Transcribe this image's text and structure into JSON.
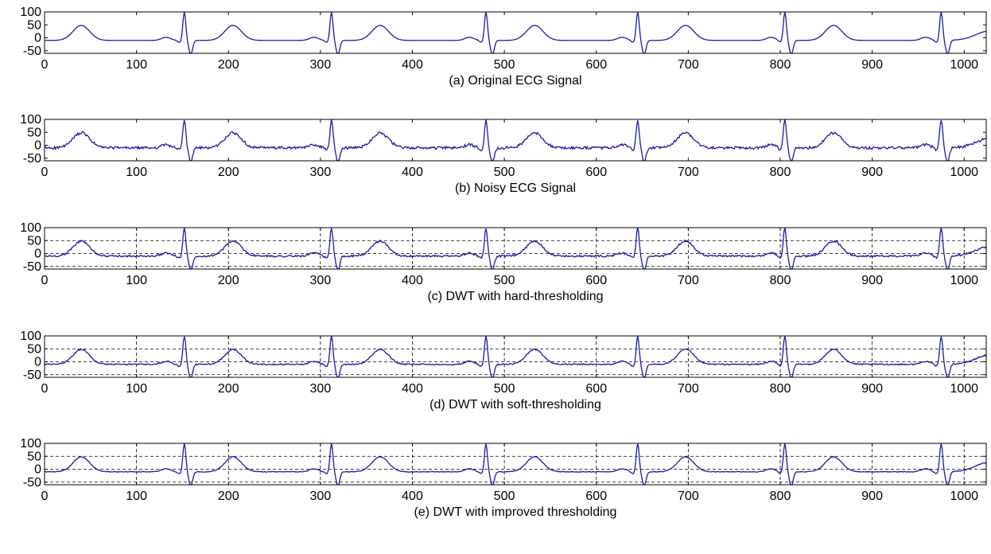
{
  "header": {
    "text": "",
    "color": "#cc0000"
  },
  "chart_data": [
    {
      "type": "line",
      "title": "(a) Original ECG Signal",
      "xlim": [
        0,
        1024
      ],
      "ylim": [
        -60,
        100
      ],
      "xticks": [
        0,
        100,
        200,
        300,
        400,
        500,
        600,
        700,
        800,
        900,
        1000
      ],
      "yticks": [
        100,
        50,
        0,
        -50
      ],
      "grid": false,
      "noise": 0,
      "line_color": "#1a1aa6"
    },
    {
      "type": "line",
      "title": "(b) Noisy ECG Signal",
      "xlim": [
        0,
        1024
      ],
      "ylim": [
        -60,
        100
      ],
      "xticks": [
        0,
        100,
        200,
        300,
        400,
        500,
        600,
        700,
        800,
        900,
        1000
      ],
      "yticks": [
        100,
        50,
        0,
        -50
      ],
      "grid": false,
      "noise": 5,
      "line_color": "#1a1aa6"
    },
    {
      "type": "line",
      "title": "(c) DWT with hard-thresholding",
      "xlim": [
        0,
        1024
      ],
      "ylim": [
        -60,
        100
      ],
      "xticks": [
        0,
        100,
        200,
        300,
        400,
        500,
        600,
        700,
        800,
        900,
        1000
      ],
      "yticks": [
        100,
        50,
        0,
        -50
      ],
      "grid": true,
      "noise": 3.5,
      "line_color": "#1a1aa6"
    },
    {
      "type": "line",
      "title": "(d) DWT with soft-thresholding",
      "xlim": [
        0,
        1024
      ],
      "ylim": [
        -60,
        100
      ],
      "xticks": [
        0,
        100,
        200,
        300,
        400,
        500,
        600,
        700,
        800,
        900,
        1000
      ],
      "yticks": [
        100,
        50,
        0,
        -50
      ],
      "grid": true,
      "noise": 2.5,
      "line_color": "#1a1aa6"
    },
    {
      "type": "line",
      "title": "(e) DWT with improved thresholding",
      "xlim": [
        0,
        1024
      ],
      "ylim": [
        -60,
        100
      ],
      "xticks": [
        0,
        100,
        200,
        300,
        400,
        500,
        600,
        700,
        800,
        900,
        1000
      ],
      "yticks": [
        100,
        50,
        0,
        -50
      ],
      "grid": true,
      "noise": 1.2,
      "line_color": "#1a1aa6"
    }
  ]
}
